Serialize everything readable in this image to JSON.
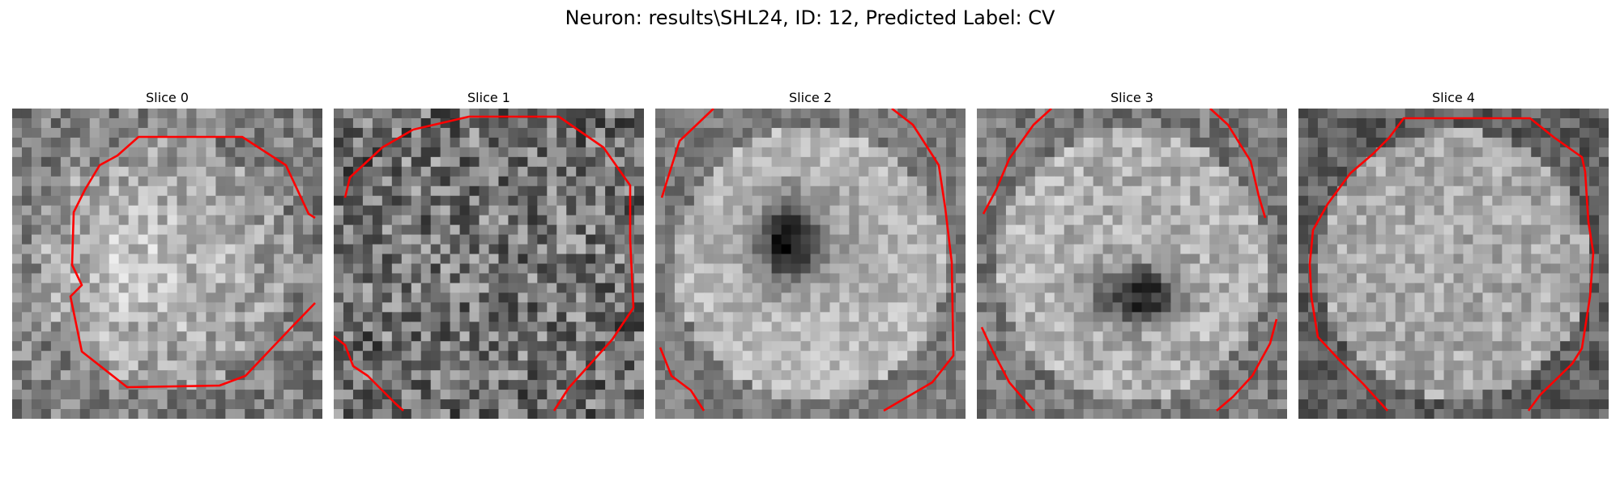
{
  "figure": {
    "suptitle": "Neuron: results\\SHL24, ID: 12, Predicted Label: CV"
  },
  "panels": [
    {
      "title": "Slice 0"
    },
    {
      "title": "Slice 1"
    },
    {
      "title": "Slice 2"
    },
    {
      "title": "Slice 3"
    },
    {
      "title": "Slice 4"
    }
  ],
  "colors": {
    "contour": "#ff0000",
    "background": "#ffffff"
  }
}
